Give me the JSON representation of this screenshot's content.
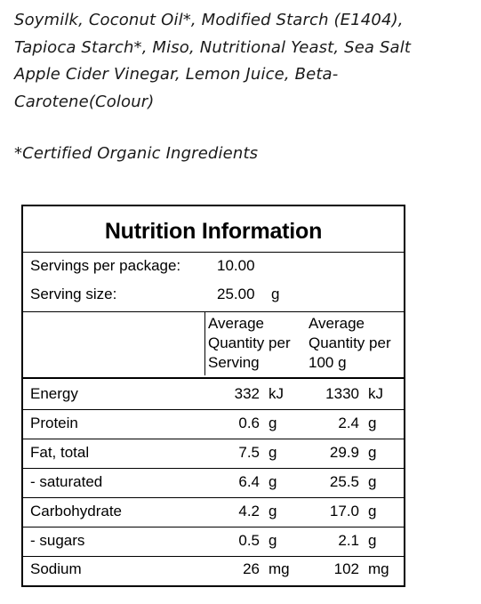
{
  "ingredients": {
    "lines": [
      "Soymilk, Coconut Oil*, Modified Starch (E1404),",
      "Tapioca Starch*, Miso, Nutritional Yeast, Sea Salt",
      "Apple Cider Vinegar, Lemon Juice, Beta-",
      "Carotene(Colour)"
    ],
    "organic_note": "*Certified Organic Ingredients"
  },
  "nutrition": {
    "title": "Nutrition Information",
    "servings_per_package_label": "Servings per package:",
    "servings_per_package_value": "10.00",
    "serving_size_label": "Serving size:",
    "serving_size_value": "25.00",
    "serving_size_unit": "g",
    "col_serving_header": [
      "Average",
      "Quantity per",
      "Serving"
    ],
    "col_100g_header": [
      "Average",
      "Quantity per",
      "100 g"
    ],
    "rows": [
      {
        "label": "Energy",
        "per_serving": "332",
        "per_serving_unit": "kJ",
        "per_100g": "1330",
        "per_100g_unit": "kJ"
      },
      {
        "label": "Protein",
        "per_serving": "0.6",
        "per_serving_unit": "g",
        "per_100g": "2.4",
        "per_100g_unit": "g"
      },
      {
        "label": "Fat, total",
        "per_serving": "7.5",
        "per_serving_unit": "g",
        "per_100g": "29.9",
        "per_100g_unit": "g"
      },
      {
        "label": "- saturated",
        "per_serving": "6.4",
        "per_serving_unit": "g",
        "per_100g": "25.5",
        "per_100g_unit": "g"
      },
      {
        "label": "Carbohydrate",
        "per_serving": "4.2",
        "per_serving_unit": "g",
        "per_100g": "17.0",
        "per_100g_unit": "g"
      },
      {
        "label": "- sugars",
        "per_serving": "0.5",
        "per_serving_unit": "g",
        "per_100g": "2.1",
        "per_100g_unit": "g"
      },
      {
        "label": "Sodium",
        "per_serving": "26",
        "per_serving_unit": "mg",
        "per_100g": "102",
        "per_100g_unit": "mg"
      }
    ]
  }
}
